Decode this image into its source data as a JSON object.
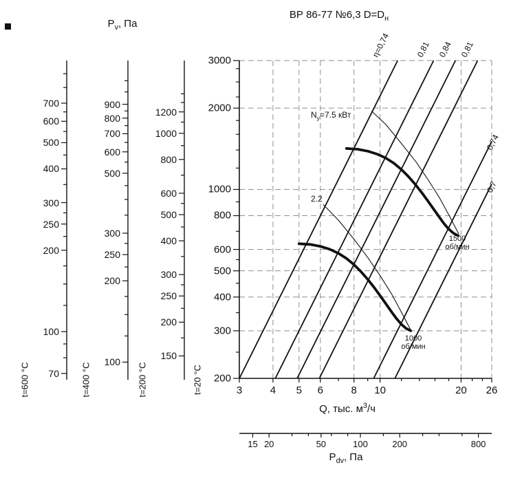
{
  "labels": {
    "title_main": "ВР 86-77 №6,3 D=D",
    "title_sub": "н",
    "pv_main": "P",
    "pv_sub": "v",
    "pv_rest": ", Па",
    "q_main": "Q, тыс. м",
    "q_sup": "3",
    "q_rest": "/ч",
    "pdv_main": "P",
    "pdv_sub": "dv",
    "pdv_rest": ", Па"
  },
  "colors": {
    "line": "#111111",
    "grid": "#8f8f8f",
    "background": "#ffffff"
  },
  "chart_data": {
    "type": "line",
    "title": "ВР 86-77 №6,3 D=Dн",
    "x_axis": {
      "label": "Q, тыс. м³/ч",
      "scale": "log",
      "min": 3,
      "max": 26,
      "ticks": [
        3,
        4,
        5,
        6,
        8,
        10,
        20,
        26
      ],
      "minor_ticks": [
        7,
        9,
        12,
        14,
        16,
        18,
        22,
        24
      ]
    },
    "y_axis": {
      "label": "Pv, Па",
      "temp_label": "t=20 °C",
      "scale": "log",
      "min": 200,
      "max": 3000,
      "ticks": [
        200,
        300,
        400,
        500,
        600,
        800,
        1000,
        2000,
        3000
      ],
      "minor_ticks": [
        250,
        350,
        450,
        550,
        700,
        900,
        1200,
        1400,
        1600,
        1800,
        2200,
        2500,
        2800
      ]
    },
    "temp_scales": [
      {
        "label": "t=200 °C",
        "pressure_ratio": 0.6195,
        "ticks": [
          150,
          200,
          250,
          300,
          400,
          500,
          600,
          800,
          1000,
          1200
        ],
        "minor_ticks": [
          175,
          225,
          275,
          350,
          450,
          550,
          700,
          900,
          1100,
          1300,
          1400
        ]
      },
      {
        "label": "t=400 °C",
        "pressure_ratio": 0.4354,
        "ticks": [
          100,
          200,
          250,
          300,
          500,
          600,
          700,
          800,
          900
        ],
        "minor_ticks": [
          125,
          150,
          175,
          225,
          275,
          350,
          400,
          450,
          550,
          650,
          750,
          850,
          1000,
          1100
        ]
      },
      {
        "label": "t=600 °C",
        "pressure_ratio": 0.3356,
        "ticks": [
          70,
          100,
          200,
          250,
          300,
          400,
          500,
          600,
          700
        ],
        "minor_ticks": [
          80,
          90,
          125,
          150,
          175,
          225,
          275,
          350,
          450,
          550,
          650,
          800,
          900
        ]
      }
    ],
    "pdv_axis": {
      "label": "Pdv, Па",
      "scale": "log",
      "ticks": [
        15,
        20,
        50,
        100,
        200,
        800
      ],
      "minor_ticks": [
        30,
        40,
        60,
        80,
        150,
        300,
        400,
        600
      ]
    },
    "efficiency_lines": [
      {
        "label": "η=0,74",
        "k": 22.2,
        "label_at": "top"
      },
      {
        "label": "0,81",
        "k": 12.0,
        "label_at": "top"
      },
      {
        "label": "0,84",
        "k": 8.26,
        "label_at": "top"
      },
      {
        "label": "0,81",
        "k": 5.65,
        "label_at": "top"
      },
      {
        "label": "0,74",
        "k": 2.23,
        "label_at": "right"
      },
      {
        "label": "0,7",
        "k": 1.55,
        "label_at": "right"
      }
    ],
    "rpm_curves": [
      {
        "rpm": 1500,
        "label_line1": "1500",
        "label_line2": "об/мин",
        "q": [
          7.5,
          8.25,
          9.0,
          9.75,
          10.5,
          11.25,
          12.0,
          12.75,
          13.5,
          14.25,
          15.0,
          15.75,
          16.5,
          17.25,
          18.0,
          18.75,
          19.5
        ],
        "p": [
          1418,
          1409,
          1386,
          1352,
          1307,
          1251,
          1186,
          1116,
          1046,
          977,
          911,
          851,
          797,
          749,
          713,
          689,
          675
        ]
      },
      {
        "rpm": 1000,
        "label_line1": "1000",
        "label_line2": "об/мин",
        "q": [
          5.0,
          5.5,
          6.0,
          6.5,
          7.0,
          7.5,
          8.0,
          8.5,
          9.0,
          9.5,
          10.0,
          10.5,
          11.0,
          11.5,
          12.0,
          12.5,
          13.0
        ],
        "p": [
          630,
          626,
          616,
          601,
          581,
          556,
          527,
          496,
          465,
          434,
          405,
          378,
          354,
          333,
          317,
          306,
          300
        ]
      }
    ],
    "power_curves": [
      {
        "power_kw": 7.5,
        "label_pre": "N",
        "label_sub": "у",
        "label_post": "=7.5 кВт",
        "q": [
          9.3,
          10.5,
          12.0,
          13.6,
          15.1,
          16.6,
          18.1,
          19.6
        ],
        "p": [
          1950,
          1740,
          1480,
          1265,
          1085,
          935,
          798,
          685
        ]
      },
      {
        "power_kw": 2.2,
        "label_pre": "2.2",
        "label_sub": "",
        "label_post": "",
        "q": [
          6.15,
          7.0,
          8.0,
          9.0,
          10.0,
          11.0,
          12.0,
          13.0
        ],
        "p": [
          880,
          770,
          655,
          560,
          480,
          413,
          352,
          302
        ]
      }
    ],
    "grid": {
      "style": "dashed",
      "vertical_at": [
        4,
        5,
        6,
        8,
        10,
        20,
        26
      ],
      "horizontal_at": [
        300,
        400,
        500,
        600,
        800,
        1000,
        2000,
        3000
      ]
    }
  }
}
